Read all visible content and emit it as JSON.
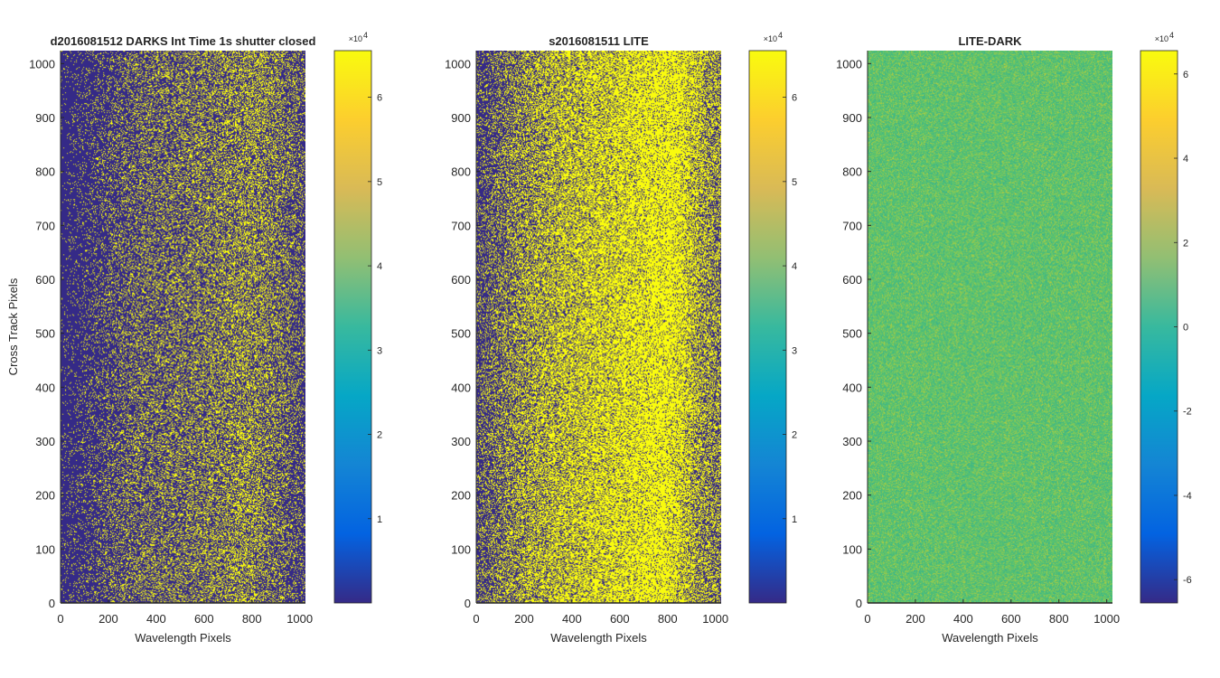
{
  "chart_data": [
    {
      "type": "heatmap",
      "title": "d2016081512  DARKS   Int Time 1s   shutter closed",
      "xlabel": "Wavelength Pixels",
      "ylabel": "Cross Track Pixels",
      "xlim": [
        0,
        1024
      ],
      "ylim": [
        0,
        1024
      ],
      "xticks": [
        0,
        200,
        400,
        600,
        800,
        1000
      ],
      "yticks": [
        0,
        100,
        200,
        300,
        400,
        500,
        600,
        700,
        800,
        900,
        1000
      ],
      "colorbar": {
        "range": [
          0,
          65535
        ],
        "ticks": [
          1,
          2,
          3,
          4,
          5,
          6
        ],
        "tick_labels": [
          "1",
          "2",
          "3",
          "4",
          "5",
          "6"
        ],
        "multiplier": "×10",
        "exponent": "4",
        "colormap": "parula"
      },
      "pattern": "binary",
      "fill_profile": {
        "x": [
          0,
          100,
          300,
          500,
          600,
          700,
          800,
          870,
          950,
          1024
        ],
        "p": [
          0.05,
          0.12,
          0.28,
          0.33,
          0.35,
          0.4,
          0.45,
          0.36,
          0.3,
          0.18
        ]
      }
    },
    {
      "type": "heatmap",
      "title": "s2016081511  LITE",
      "xlabel": "Wavelength Pixels",
      "ylabel": "",
      "xlim": [
        0,
        1024
      ],
      "ylim": [
        0,
        1024
      ],
      "xticks": [
        0,
        200,
        400,
        600,
        800,
        1000
      ],
      "yticks": [
        0,
        100,
        200,
        300,
        400,
        500,
        600,
        700,
        800,
        900,
        1000
      ],
      "colorbar": {
        "range": [
          0,
          65535
        ],
        "ticks": [
          1,
          2,
          3,
          4,
          5,
          6
        ],
        "tick_labels": [
          "1",
          "2",
          "3",
          "4",
          "5",
          "6"
        ],
        "multiplier": "×10",
        "exponent": "4",
        "colormap": "parula"
      },
      "pattern": "binary",
      "fill_profile": {
        "x": [
          0,
          100,
          250,
          400,
          550,
          700,
          800,
          880,
          950,
          1024
        ],
        "p": [
          0.2,
          0.35,
          0.55,
          0.65,
          0.72,
          0.8,
          0.85,
          0.7,
          0.5,
          0.4
        ]
      }
    },
    {
      "type": "heatmap",
      "title": "LITE-DARK",
      "xlabel": "Wavelength Pixels",
      "ylabel": "",
      "xlim": [
        0,
        1024
      ],
      "ylim": [
        0,
        1024
      ],
      "xticks": [
        0,
        200,
        400,
        600,
        800,
        1000
      ],
      "yticks": [
        0,
        100,
        200,
        300,
        400,
        500,
        600,
        700,
        800,
        900,
        1000
      ],
      "colorbar": {
        "range": [
          -65535,
          65535
        ],
        "ticks": [
          -6,
          -4,
          -2,
          0,
          2,
          4,
          6
        ],
        "tick_labels": [
          "-6",
          "-4",
          "-2",
          "0",
          "2",
          "4",
          "6"
        ],
        "multiplier": "×10",
        "exponent": "4",
        "colormap": "parula"
      },
      "pattern": "noise",
      "base_color": "#5cc26e",
      "noise_colors": [
        "#3db48a",
        "#7dca5a",
        "#a6cb45",
        "#44bc7f"
      ]
    }
  ],
  "colors": {
    "parula": [
      "#352a87",
      "#0363e1",
      "#1485d4",
      "#06a7c6",
      "#38b99e",
      "#92bf73",
      "#d9ba56",
      "#fcce2e",
      "#f9fb0e"
    ],
    "low": "#352a87",
    "high": "#f9fb0e",
    "axis": "#262626"
  }
}
